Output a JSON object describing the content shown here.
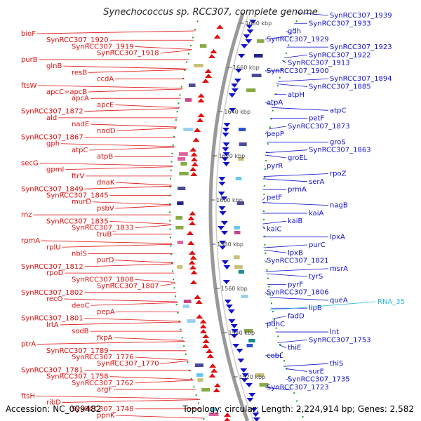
{
  "title": "Synechococcus sp. RCC307, complete genome",
  "footer": {
    "accession": "Accession: NC_009482",
    "summary": "Topology: circular; Length: 2,224,914 bp; Genes: 2,582"
  },
  "colors": {
    "forward": "#e01010",
    "reverse": "#1010cc",
    "rna": "#30b8e0",
    "backbone": "#999999",
    "ticks": "#229922"
  },
  "scale_labels": [
    "1680 kbp",
    "1660 kbp",
    "1640 kbp",
    "1620 kbp",
    "1600 kbp",
    "1580 kbp",
    "1560 kbp",
    "1540 kbp",
    "1520 kbp"
  ],
  "left_labels": [
    "bioF",
    "SynRCC307_1920",
    "SynRCC307_1919",
    "SynRCC307_1918",
    "purB",
    "glnB",
    "resB",
    "ccdA",
    "ftsW",
    "apcC=apcB",
    "apcA",
    "apcE",
    "SynRCC307_1872",
    "ald",
    "nadE",
    "nadD",
    "SynRCC307_1867",
    "gph",
    "atpC",
    "atpB",
    "secG",
    "gpmI",
    "ftrV",
    "dnaK",
    "SynRCC307_1849",
    "SynRCC307_1845",
    "murD",
    "psbV",
    "rnz",
    "SynRCC307_1835",
    "SynRCC307_1833",
    "truB",
    "rpmA",
    "rplU",
    "nblS",
    "purD",
    "SynRCC307_1812",
    "rpoD",
    "SynRCC307_1808",
    "SynRCC307_1807",
    "SynRCC307_1802",
    "recO",
    "deoC",
    "pepA",
    "SynRCC307_1801",
    "lrtA",
    "sodB",
    "fkpA",
    "ptrA",
    "SynRCC307_1789",
    "SynRCC307_1776",
    "SynRCC307_1770",
    "SynRCC307_1781",
    "SynRCC307_1758",
    "SynRCC307_1762",
    "argF",
    "ftsH",
    "ribD",
    "SynRCC307_1748",
    "ppnK"
  ],
  "right_labels": [
    "SynRCC307_1939",
    "SynRCC307_1933",
    "gdh",
    "SynRCC307_1929",
    "SynRCC307_1923",
    "SynRCC307_1922",
    "SynRCC307_1913",
    "SynRCC307_1900",
    "SynRCC307_1894",
    "SynRCC307_1885",
    "atpH",
    "atpA",
    "atpC",
    "petF",
    "SynRCC307_1873",
    "pepP",
    "groS",
    "SynRCC307_1863",
    "groEL",
    "pyrR",
    "rpoZ",
    "serA",
    "prmA",
    "petF",
    "nagB",
    "kaiA",
    "kaiB",
    "kaiC",
    "lpxA",
    "purC",
    "lpxB",
    "SynRCC307_1821",
    "msrA",
    "tyrS",
    "pyrF",
    "SynRCC307_1806",
    "queA",
    "lipB",
    "fadD",
    "pdhC",
    "lnt",
    "SynRCC307_1753",
    "thiE",
    "cobL",
    "thiS",
    "surE",
    "SynRCC307_1735",
    "SynRCC307_1723"
  ],
  "rna_labels": [
    "RNA_35"
  ]
}
